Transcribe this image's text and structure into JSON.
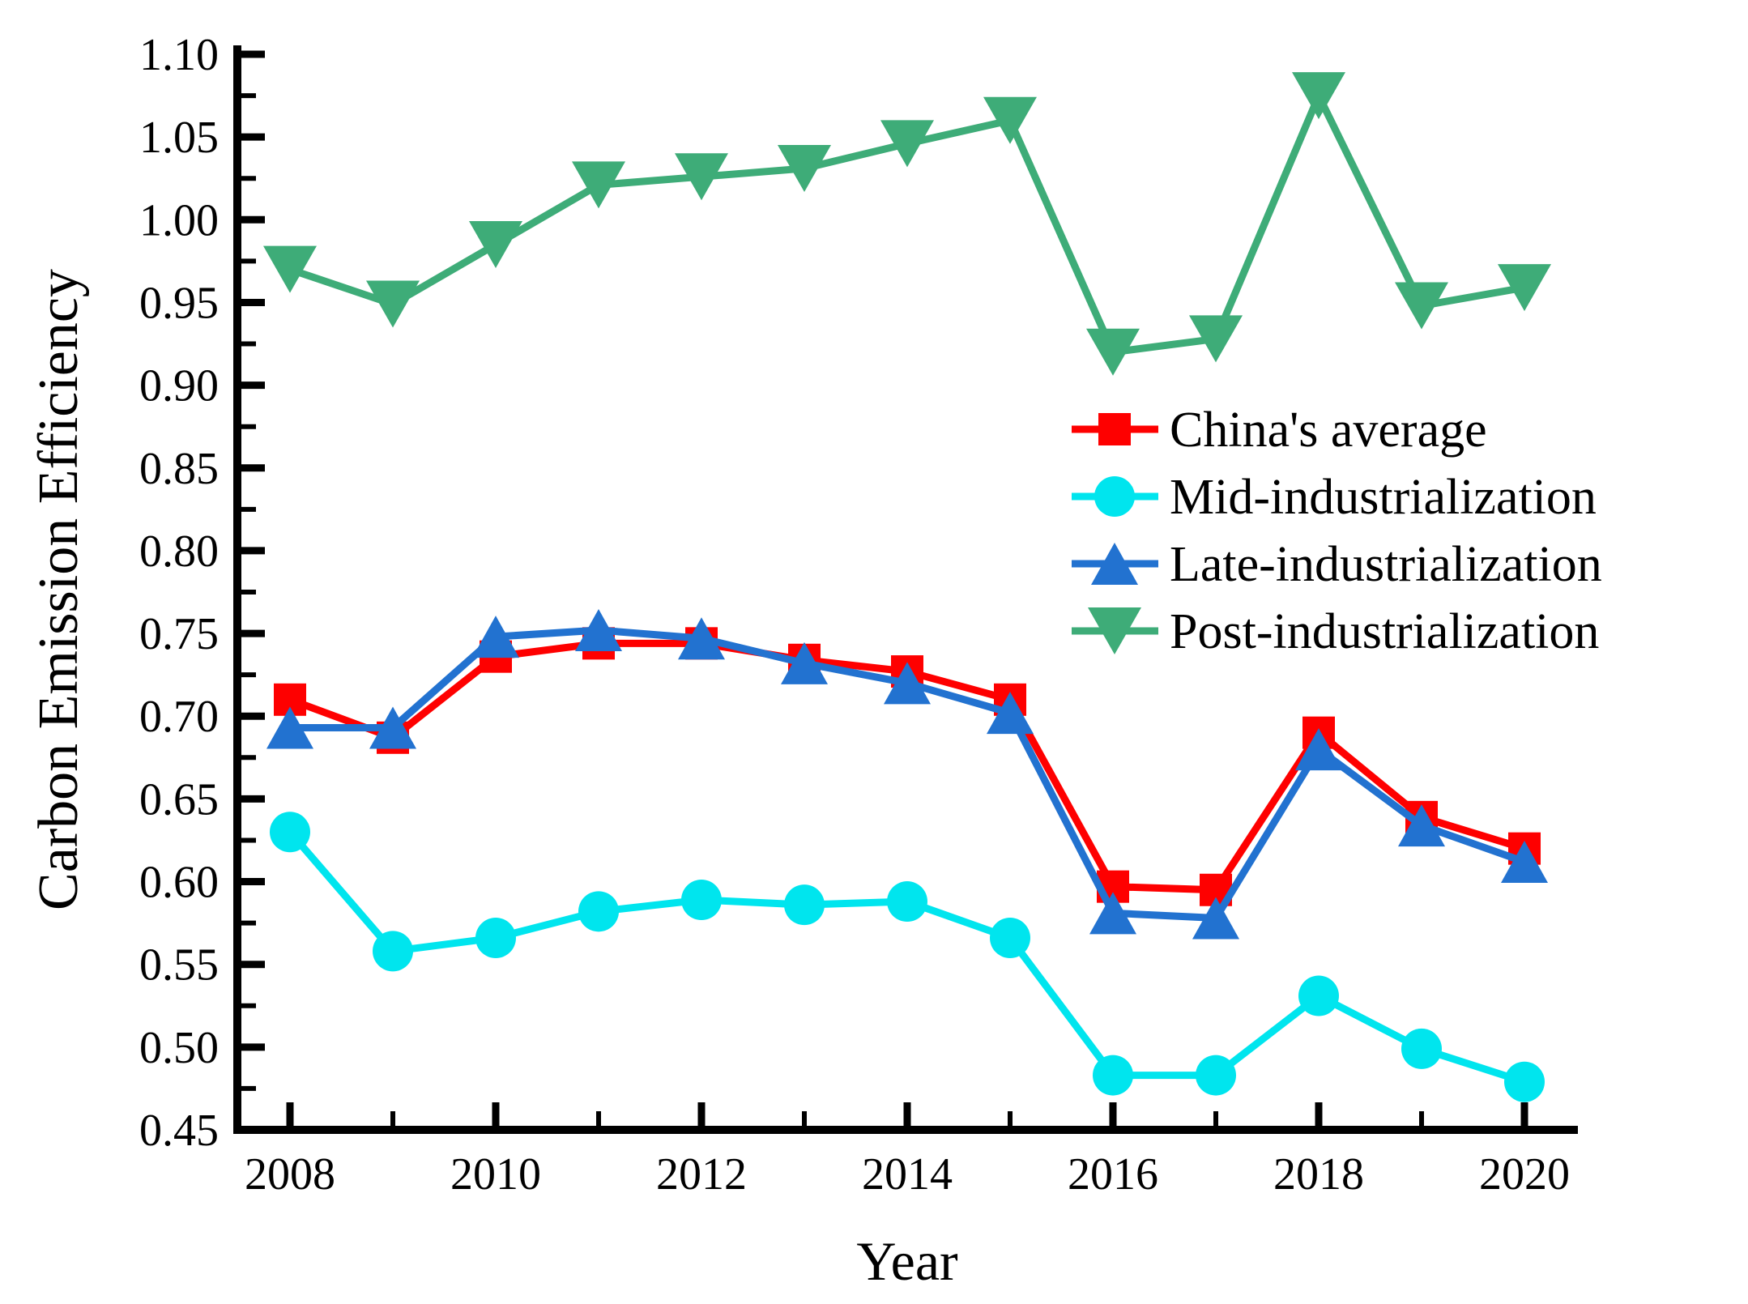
{
  "figure": {
    "background": "#ffffff",
    "axis_color": "#000000"
  },
  "chart_data": {
    "type": "line",
    "title": "",
    "xlabel": "Year",
    "ylabel": "Carbon Emission Efficiency",
    "x": [
      2008,
      2009,
      2010,
      2011,
      2012,
      2013,
      2014,
      2015,
      2016,
      2017,
      2018,
      2019,
      2020
    ],
    "ylim": [
      0.45,
      1.1
    ],
    "xlim": [
      2007.5,
      2020.5
    ],
    "grid": false,
    "legend_position": "inside-right-middle",
    "xticks_major": [
      2008,
      2010,
      2012,
      2014,
      2016,
      2018,
      2020
    ],
    "xticks_minor": [
      2009,
      2011,
      2013,
      2015,
      2017,
      2019
    ],
    "ytick_labels": [
      "0.45",
      "0.50",
      "0.55",
      "0.60",
      "0.65",
      "0.70",
      "0.75",
      "0.80",
      "0.85",
      "0.90",
      "0.95",
      "1.00",
      "1.05",
      "1.10"
    ],
    "yticks_minor": [
      0.475,
      0.525,
      0.575,
      0.625,
      0.675,
      0.725,
      0.775,
      0.825,
      0.875,
      0.925,
      0.975,
      1.025,
      1.075
    ],
    "series": [
      {
        "name": "China's average",
        "marker": "square",
        "color": "#FE0000",
        "values": [
          0.71,
          0.687,
          0.736,
          0.744,
          0.744,
          0.734,
          0.727,
          0.71,
          0.597,
          0.595,
          0.69,
          0.639,
          0.62
        ]
      },
      {
        "name": "Mid-industrialization",
        "marker": "circle",
        "color": "#00E5EE",
        "values": [
          0.63,
          0.558,
          0.566,
          0.582,
          0.589,
          0.586,
          0.588,
          0.566,
          0.483,
          0.483,
          0.531,
          0.499,
          0.479
        ]
      },
      {
        "name": "Late-industrialization",
        "marker": "triangle-up",
        "color": "#2272D0",
        "values": [
          0.693,
          0.693,
          0.748,
          0.752,
          0.747,
          0.732,
          0.72,
          0.702,
          0.581,
          0.578,
          0.68,
          0.634,
          0.612
        ]
      },
      {
        "name": "Post-industrialization",
        "marker": "triangle-down",
        "color": "#3EAC78",
        "values": [
          0.97,
          0.949,
          0.985,
          1.021,
          1.026,
          1.031,
          1.046,
          1.06,
          0.92,
          0.928,
          1.075,
          0.948,
          0.959
        ]
      }
    ]
  }
}
